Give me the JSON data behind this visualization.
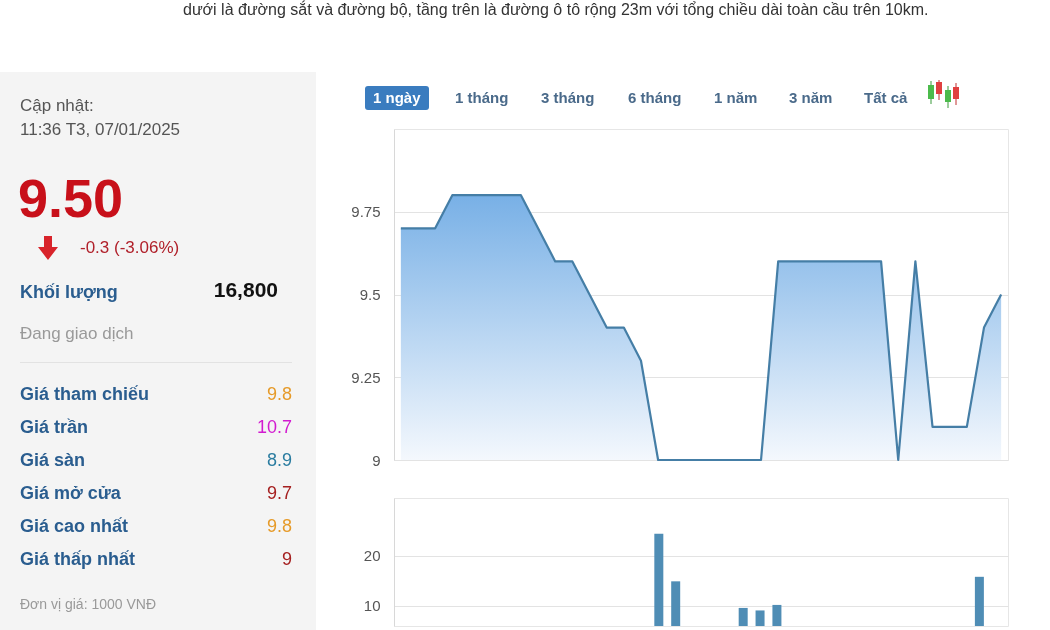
{
  "chart_data": [
    {
      "type": "other",
      "annotations": [
        "dưới là đường sắt và đường bộ, tầng trên là đường ô tô rộng 23m với tổng chiều dài toàn cầu trên 10km.",
        "Cập nhật:",
        "11:36 T3, 07/01/2025",
        "9.50",
        "-0.3 (-3.06%)",
        "Khối lượng",
        "16,800",
        "Đang giao dịch",
        "Giá tham chiếu",
        "9.8",
        "Giá trần",
        "10.7",
        "Giá sàn",
        "8.9",
        "Giá mở cửa",
        "9.7",
        "Giá cao nhất",
        "9.8",
        "Giá thấp nhất",
        "9",
        "Đơn vị giá: 1000 VNĐ"
      ]
    },
    {
      "type": "area",
      "annotations": [
        "1 ngày",
        "1 tháng",
        "3 tháng",
        "6 tháng",
        "1 năm",
        "3 năm",
        "Tất cả"
      ],
      "categories": [
        null,
        null,
        null,
        null,
        null,
        null,
        null,
        null,
        null,
        null,
        null,
        null,
        null,
        null,
        null,
        null,
        null,
        null,
        null,
        null,
        null,
        null,
        null,
        null,
        null,
        null,
        null,
        null,
        null,
        null,
        null,
        null,
        null,
        null,
        null,
        null
      ],
      "series": [
        {
          "color": "#457ea6",
          "values": [
            9.7,
            9.7,
            9.7,
            9.8,
            9.8,
            9.8,
            9.8,
            9.8,
            9.7,
            9.6,
            9.6,
            9.5,
            9.4,
            9.4,
            9.3,
            9.0,
            9.0,
            9.0,
            9.0,
            9.0,
            9.0,
            9.0,
            9.6,
            9.6,
            9.6,
            9.6,
            9.6,
            9.6,
            9.6,
            9.0,
            9.6,
            9.1,
            9.1,
            9.1,
            9.4,
            9.5
          ]
        }
      ],
      "ylim": [
        9,
        10
      ],
      "yticks": [
        9,
        9.25,
        9.5,
        9.75
      ],
      "grid": "y",
      "tick_labels": "y",
      "marker": "none"
    },
    {
      "type": "bar",
      "categories": [
        null,
        null,
        null,
        null,
        null,
        null,
        null,
        null,
        null,
        null,
        null,
        null,
        null,
        null,
        null,
        null,
        null,
        null,
        null,
        null,
        null,
        null,
        null,
        null,
        null,
        null,
        null,
        null,
        null,
        null,
        null,
        null,
        null,
        null,
        null,
        null
      ],
      "series": [
        {
          "color": "#4f8db5",
          "values": [
            null,
            null,
            null,
            null,
            null,
            null,
            null,
            null,
            null,
            null,
            null,
            null,
            null,
            null,
            null,
            24.4,
            14.9,
            null,
            null,
            null,
            9.6,
            9.1,
            10.2,
            null,
            null,
            null,
            null,
            null,
            null,
            null,
            null,
            null,
            null,
            null,
            15.8,
            null
          ]
        }
      ],
      "ylim": [
        6,
        31.5
      ],
      "yticks": [
        10,
        20
      ],
      "grid": "y",
      "tick_labels": "y"
    }
  ]
}
